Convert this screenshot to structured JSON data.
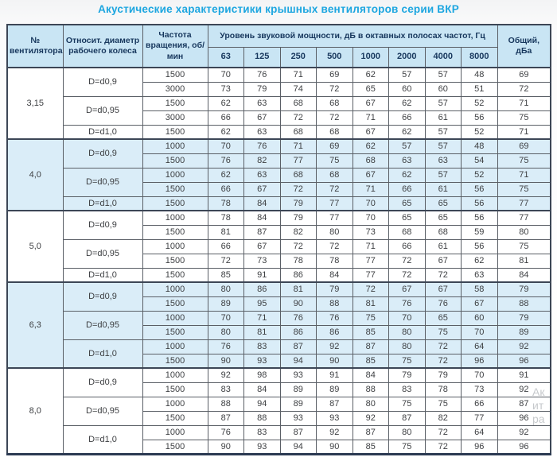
{
  "title": "Акустические характеристики крышных вентиляторов серии ВКР",
  "colors": {
    "title_accent": "#1ca6e0",
    "header_bg": "#c9e5f4",
    "band_shaded": "#daedf8",
    "band_plain": "#ffffff",
    "header_text": "#17375d",
    "body_text": "#3d3f42",
    "outer_border": "#3c4656"
  },
  "table": {
    "headers": {
      "fan_number": "№ вентилятора",
      "diameter": "Относит. диаметр рабочего колеса",
      "speed": "Частота вращения, об/мин",
      "spl_group": "Уровень звуковой мощности, дБ в октавных полосах частот, Гц",
      "freq_bands": [
        "63",
        "125",
        "250",
        "500",
        "1000",
        "2000",
        "4000",
        "8000"
      ],
      "total": "Общий, дБа"
    },
    "groups": [
      {
        "fan": "3,15",
        "shaded": false,
        "subgroups": [
          {
            "diameter": "D=d0,9",
            "rows": [
              {
                "speed": "1500",
                "levels": [
                  70,
                  76,
                  71,
                  69,
                  62,
                  57,
                  57,
                  48
                ],
                "total": "69"
              },
              {
                "speed": "3000",
                "levels": [
                  73,
                  79,
                  74,
                  72,
                  65,
                  60,
                  60,
                  51
                ],
                "total": "72"
              }
            ]
          },
          {
            "diameter": "D=d0,95",
            "rows": [
              {
                "speed": "1500",
                "levels": [
                  62,
                  63,
                  68,
                  68,
                  67,
                  62,
                  57,
                  52
                ],
                "total": "71"
              },
              {
                "speed": "3000",
                "levels": [
                  66,
                  67,
                  72,
                  72,
                  71,
                  66,
                  61,
                  56
                ],
                "total": "75"
              }
            ]
          },
          {
            "diameter": "D=d1,0",
            "rows": [
              {
                "speed": "1500",
                "levels": [
                  62,
                  63,
                  68,
                  68,
                  67,
                  62,
                  57,
                  52
                ],
                "total": "71"
              }
            ]
          }
        ]
      },
      {
        "fan": "4,0",
        "shaded": true,
        "subgroups": [
          {
            "diameter": "D=d0,9",
            "rows": [
              {
                "speed": "1000",
                "levels": [
                  70,
                  76,
                  71,
                  69,
                  62,
                  57,
                  57,
                  48
                ],
                "total": "69"
              },
              {
                "speed": "1500",
                "levels": [
                  76,
                  82,
                  77,
                  75,
                  68,
                  63,
                  63,
                  54
                ],
                "total": "75"
              }
            ]
          },
          {
            "diameter": "D=d0,95",
            "rows": [
              {
                "speed": "1000",
                "levels": [
                  62,
                  63,
                  68,
                  68,
                  67,
                  62,
                  57,
                  52
                ],
                "total": "71"
              },
              {
                "speed": "1500",
                "levels": [
                  66,
                  67,
                  72,
                  72,
                  71,
                  66,
                  61,
                  56
                ],
                "total": "75"
              }
            ]
          },
          {
            "diameter": "D=d1,0",
            "rows": [
              {
                "speed": "1500",
                "levels": [
                  78,
                  84,
                  79,
                  77,
                  70,
                  65,
                  65,
                  56
                ],
                "total": "77"
              }
            ]
          }
        ]
      },
      {
        "fan": "5,0",
        "shaded": false,
        "subgroups": [
          {
            "diameter": "D=d0,9",
            "rows": [
              {
                "speed": "1000",
                "levels": [
                  78,
                  84,
                  79,
                  77,
                  70,
                  65,
                  65,
                  56
                ],
                "total": "77"
              },
              {
                "speed": "1500",
                "levels": [
                  81,
                  87,
                  82,
                  80,
                  73,
                  68,
                  68,
                  59
                ],
                "total": "80"
              }
            ]
          },
          {
            "diameter": "D=d0,95",
            "rows": [
              {
                "speed": "1000",
                "levels": [
                  66,
                  67,
                  72,
                  72,
                  71,
                  66,
                  61,
                  56
                ],
                "total": "75"
              },
              {
                "speed": "1500",
                "levels": [
                  72,
                  73,
                  78,
                  78,
                  77,
                  72,
                  67,
                  62
                ],
                "total": "81"
              }
            ]
          },
          {
            "diameter": "D=d1,0",
            "rows": [
              {
                "speed": "1500",
                "levels": [
                  85,
                  91,
                  86,
                  84,
                  77,
                  72,
                  72,
                  63
                ],
                "total": "84"
              }
            ]
          }
        ]
      },
      {
        "fan": "6,3",
        "shaded": true,
        "subgroups": [
          {
            "diameter": "D=d0,9",
            "rows": [
              {
                "speed": "1000",
                "levels": [
                  80,
                  86,
                  81,
                  79,
                  72,
                  67,
                  67,
                  58
                ],
                "total": "79"
              },
              {
                "speed": "1500",
                "levels": [
                  89,
                  95,
                  90,
                  88,
                  81,
                  76,
                  76,
                  67
                ],
                "total": "88"
              }
            ]
          },
          {
            "diameter": "D=d0,95",
            "rows": [
              {
                "speed": "1000",
                "levels": [
                  70,
                  71,
                  76,
                  76,
                  75,
                  70,
                  65,
                  60
                ],
                "total": "79"
              },
              {
                "speed": "1500",
                "levels": [
                  80,
                  81,
                  86,
                  86,
                  85,
                  80,
                  75,
                  70
                ],
                "total": "89"
              }
            ]
          },
          {
            "diameter": "D=d1,0",
            "rows": [
              {
                "speed": "1000",
                "levels": [
                  76,
                  83,
                  87,
                  92,
                  87,
                  80,
                  72,
                  64
                ],
                "total": "92"
              },
              {
                "speed": "1500",
                "levels": [
                  90,
                  93,
                  94,
                  90,
                  85,
                  75,
                  72,
                  96
                ],
                "total": "96"
              }
            ]
          }
        ]
      },
      {
        "fan": "8,0",
        "shaded": false,
        "subgroups": [
          {
            "diameter": "D=d0,9",
            "rows": [
              {
                "speed": "1000",
                "levels": [
                  92,
                  98,
                  93,
                  91,
                  84,
                  79,
                  79,
                  70
                ],
                "total": "91"
              },
              {
                "speed": "1500",
                "levels": [
                  83,
                  84,
                  89,
                  89,
                  88,
                  83,
                  78,
                  73
                ],
                "total": "92"
              }
            ]
          },
          {
            "diameter": "D=d0,95",
            "rows": [
              {
                "speed": "1000",
                "levels": [
                  88,
                  94,
                  89,
                  87,
                  80,
                  75,
                  75,
                  66
                ],
                "total": "87"
              },
              {
                "speed": "1500",
                "levels": [
                  87,
                  88,
                  93,
                  93,
                  92,
                  87,
                  82,
                  77
                ],
                "total": "96"
              }
            ]
          },
          {
            "diameter": "D=d1,0",
            "rows": [
              {
                "speed": "1000",
                "levels": [
                  76,
                  83,
                  87,
                  92,
                  87,
                  80,
                  72,
                  64
                ],
                "total": "92"
              },
              {
                "speed": "1500",
                "levels": [
                  90,
                  93,
                  94,
                  90,
                  85,
                  75,
                  72,
                  96
                ],
                "total": "96"
              }
            ]
          }
        ]
      }
    ]
  },
  "watermark": {
    "lines": [
      "Ак",
      "ит",
      "ра"
    ]
  }
}
